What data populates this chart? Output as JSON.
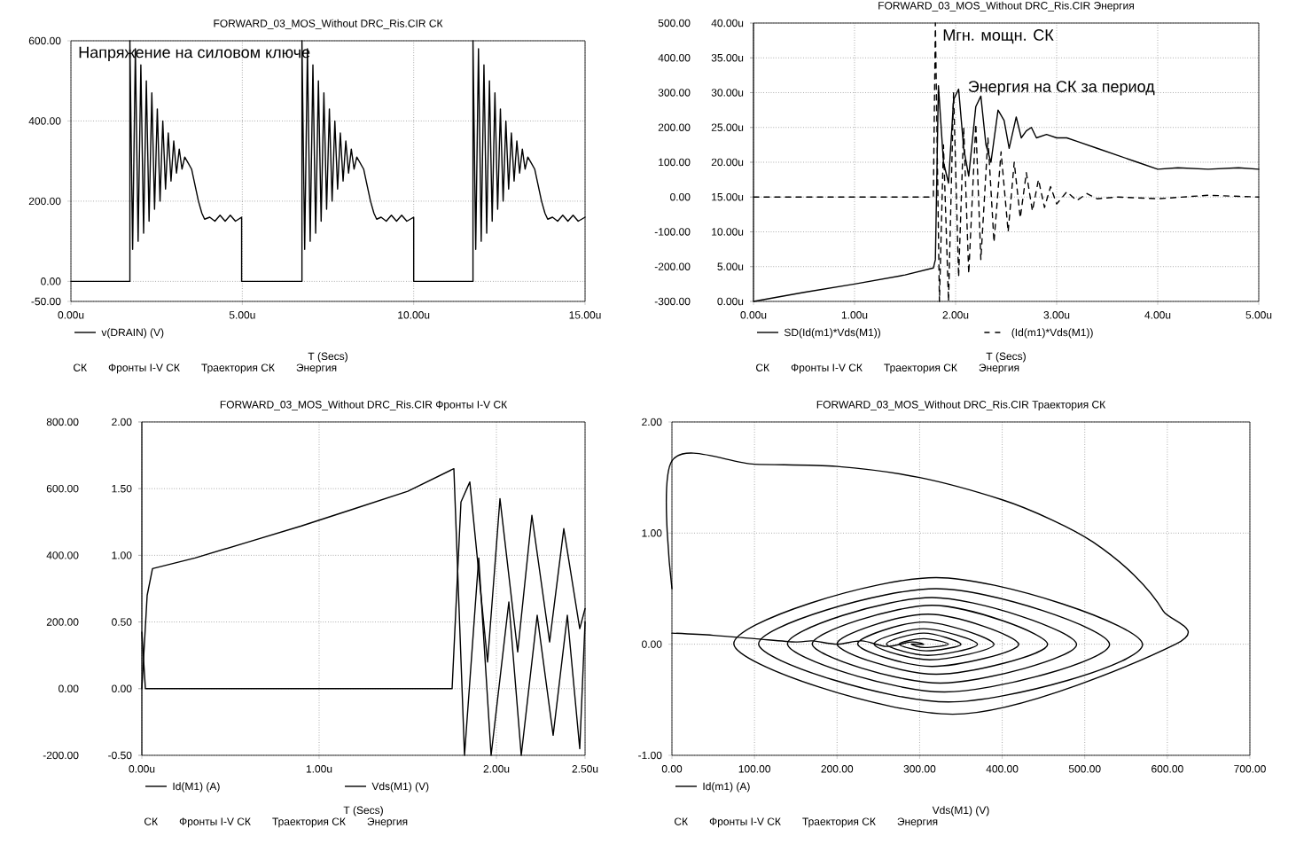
{
  "chart_data": [
    {
      "type": "line",
      "title": "FORWARD_03_MOS_Without DRC_Ris.CIR СК",
      "xlabel": "T (Secs)",
      "xlim": [
        0,
        15
      ],
      "ylim": [
        -50,
        600
      ],
      "legend": "bottom",
      "xticks": [
        {
          "value": 0,
          "label": "0.00u"
        },
        {
          "value": 5,
          "label": "5.00u"
        },
        {
          "value": 10,
          "label": "10.00u"
        },
        {
          "value": 15,
          "label": "15.00u"
        }
      ],
      "yticks": [
        {
          "value": -50,
          "label": "-50.00"
        },
        {
          "value": 0,
          "label": "0.00"
        },
        {
          "value": 200,
          "label": "200.00"
        },
        {
          "value": 400,
          "label": "400.00"
        },
        {
          "value": 600,
          "label": "600.00"
        }
      ],
      "grid": true,
      "annotations": [
        "Напряжение на силовом ключе",
        "СК",
        "Фронты I-V СК",
        "Траектория СК",
        "Энергия"
      ],
      "series": [
        {
          "name": "v(DRAIN) (V)",
          "color": "#000000",
          "x": [
            0,
            1.72,
            1.72,
            1.8,
            1.88,
            1.96,
            2.04,
            2.12,
            2.2,
            2.28,
            2.36,
            2.44,
            2.52,
            2.6,
            2.68,
            2.76,
            2.84,
            2.92,
            3.0,
            3.08,
            3.16,
            3.24,
            3.32,
            3.42,
            3.52,
            3.62,
            3.72,
            3.82,
            3.9,
            4.05,
            4.2,
            4.35,
            4.5,
            4.65,
            4.8,
            4.98,
            4.98,
            6.74,
            6.74,
            6.82,
            6.9,
            6.98,
            7.06,
            7.14,
            7.22,
            7.3,
            7.38,
            7.46,
            7.54,
            7.62,
            7.7,
            7.78,
            7.86,
            7.94,
            8.02,
            8.1,
            8.18,
            8.26,
            8.34,
            8.44,
            8.54,
            8.64,
            8.74,
            8.84,
            8.92,
            9.05,
            9.2,
            9.35,
            9.5,
            9.65,
            9.8,
            10.0,
            10.0,
            11.73,
            11.73,
            11.81,
            11.89,
            11.97,
            12.05,
            12.13,
            12.21,
            12.29,
            12.37,
            12.45,
            12.53,
            12.61,
            12.69,
            12.77,
            12.85,
            12.93,
            13.01,
            13.09,
            13.17,
            13.25,
            13.33,
            13.43,
            13.53,
            13.63,
            13.73,
            13.83,
            13.91,
            14.05,
            14.2,
            14.35,
            14.5,
            14.65,
            14.8,
            15.0
          ],
          "values": [
            0,
            0,
            600,
            80,
            580,
            100,
            540,
            120,
            500,
            150,
            470,
            180,
            430,
            200,
            400,
            230,
            370,
            250,
            350,
            270,
            330,
            280,
            310,
            295,
            280,
            240,
            200,
            170,
            155,
            160,
            150,
            165,
            150,
            165,
            150,
            160,
            0,
            0,
            600,
            80,
            580,
            100,
            540,
            120,
            500,
            150,
            470,
            180,
            430,
            200,
            400,
            230,
            370,
            250,
            350,
            270,
            330,
            280,
            310,
            295,
            280,
            240,
            200,
            170,
            155,
            160,
            150,
            165,
            150,
            165,
            150,
            160,
            0,
            0,
            600,
            80,
            580,
            100,
            540,
            120,
            500,
            150,
            470,
            180,
            430,
            200,
            400,
            230,
            370,
            250,
            350,
            270,
            330,
            280,
            310,
            295,
            280,
            240,
            200,
            170,
            155,
            160,
            150,
            165,
            150,
            165,
            150,
            160
          ]
        }
      ]
    },
    {
      "type": "line",
      "title": "FORWARD_03_MOS_Without DRC_Ris.CIR Энергия",
      "xlabel": "T (Secs)",
      "xlim": [
        0,
        5
      ],
      "ylim": [
        -300,
        500
      ],
      "y2lim": [
        0,
        40
      ],
      "legend": "bottom",
      "xticks": [
        {
          "value": 0,
          "label": "0.00u"
        },
        {
          "value": 1,
          "label": "1.00u"
        },
        {
          "value": 2,
          "label": "2.00u"
        },
        {
          "value": 3,
          "label": "3.00u"
        },
        {
          "value": 4,
          "label": "4.00u"
        },
        {
          "value": 5,
          "label": "5.00u"
        }
      ],
      "yticks": [
        {
          "value": -300,
          "label": "-300.00"
        },
        {
          "value": -200,
          "label": "-200.00"
        },
        {
          "value": -100,
          "label": "-100.00"
        },
        {
          "value": 0,
          "label": "0.00"
        },
        {
          "value": 100,
          "label": "100.00"
        },
        {
          "value": 200,
          "label": "200.00"
        },
        {
          "value": 300,
          "label": "300.00"
        },
        {
          "value": 400,
          "label": "400.00"
        },
        {
          "value": 500,
          "label": "500.00"
        }
      ],
      "y2ticks": [
        {
          "value": 0,
          "label": "0.00u"
        },
        {
          "value": 5,
          "label": "5.00u"
        },
        {
          "value": 10,
          "label": "10.00u"
        },
        {
          "value": 15,
          "label": "15.00u"
        },
        {
          "value": 20,
          "label": "20.00u"
        },
        {
          "value": 25,
          "label": "25.00u"
        },
        {
          "value": 30,
          "label": "30.00u"
        },
        {
          "value": 35,
          "label": "35.00u"
        },
        {
          "value": 40,
          "label": "40.00u"
        }
      ],
      "grid": true,
      "annotations": [
        "Мгн. мощн. СК",
        "Энергия на СК за период",
        "СК",
        "Фронты I-V СК",
        "Траектория СК",
        "Энергия"
      ],
      "series": [
        {
          "name": "SD(Id(m1)*Vds(M1))",
          "color": "#000000",
          "axis": "y2",
          "x": [
            0,
            0.5,
            1.0,
            1.5,
            1.78,
            1.8,
            1.83,
            1.88,
            1.93,
            1.98,
            2.03,
            2.08,
            2.13,
            2.2,
            2.25,
            2.3,
            2.35,
            2.42,
            2.48,
            2.53,
            2.6,
            2.65,
            2.7,
            2.75,
            2.8,
            2.9,
            3.0,
            3.1,
            3.2,
            3.4,
            3.6,
            3.8,
            4.0,
            4.2,
            4.5,
            4.8,
            5.0
          ],
          "values": [
            0,
            1.3,
            2.5,
            3.8,
            4.8,
            6,
            31,
            20,
            17,
            29,
            30.5,
            22,
            18,
            28,
            29.5,
            22.5,
            20,
            27.5,
            26,
            22,
            26.5,
            23.5,
            24.5,
            25,
            23.5,
            24,
            23.5,
            23.5,
            23,
            22,
            21,
            20,
            19,
            19.2,
            19,
            19.2,
            19
          ]
        },
        {
          "name": "(Id(m1)*Vds(M1))",
          "color": "#000000",
          "line_style": "dashed",
          "x": [
            0,
            1.78,
            1.8,
            1.84,
            1.88,
            1.93,
            1.98,
            2.03,
            2.08,
            2.13,
            2.2,
            2.25,
            2.32,
            2.38,
            2.45,
            2.52,
            2.58,
            2.64,
            2.7,
            2.76,
            2.82,
            2.88,
            2.94,
            3.0,
            3.1,
            3.2,
            3.3,
            3.4,
            3.6,
            4.0,
            4.5,
            5.0
          ],
          "values": [
            0,
            0,
            500,
            -300,
            150,
            -300,
            300,
            -230,
            200,
            -220,
            210,
            -180,
            170,
            -130,
            130,
            -100,
            100,
            -60,
            70,
            -40,
            50,
            -30,
            30,
            -20,
            15,
            -10,
            10,
            -5,
            0,
            -5,
            5,
            0
          ]
        }
      ]
    },
    {
      "type": "line",
      "title": "FORWARD_03_MOS_Without DRC_Ris.CIR Фронты I-V СК",
      "xlabel": "T (Secs)",
      "xlim": [
        0,
        2.5
      ],
      "ylim": [
        -200,
        800
      ],
      "y2lim": [
        -0.5,
        2
      ],
      "legend": "bottom",
      "xticks": [
        {
          "value": 0,
          "label": "0.00u"
        },
        {
          "value": 1,
          "label": "1.00u"
        },
        {
          "value": 2,
          "label": "2.00u"
        },
        {
          "value": 2.5,
          "label": "2.50u"
        }
      ],
      "yticks": [
        {
          "value": -200,
          "label": "-200.00"
        },
        {
          "value": 0,
          "label": "0.00"
        },
        {
          "value": 200,
          "label": "200.00"
        },
        {
          "value": 400,
          "label": "400.00"
        },
        {
          "value": 600,
          "label": "600.00"
        },
        {
          "value": 800,
          "label": "800.00"
        }
      ],
      "y2ticks": [
        {
          "value": -0.5,
          "label": "-0.50"
        },
        {
          "value": 0,
          "label": "0.00"
        },
        {
          "value": 0.5,
          "label": "0.50"
        },
        {
          "value": 1,
          "label": "1.00"
        },
        {
          "value": 1.5,
          "label": "1.50"
        },
        {
          "value": 2,
          "label": "2.00"
        }
      ],
      "grid": true,
      "annotations": [
        "СК",
        "Фронты I-V СК",
        "Траектория СК",
        "Энергия"
      ],
      "series": [
        {
          "name": "Id(M1) (A)",
          "color": "#000000",
          "axis": "y2",
          "x": [
            0,
            0.03,
            0.06,
            0.3,
            0.6,
            0.9,
            1.2,
            1.5,
            1.76,
            1.82,
            1.9,
            1.97,
            2.07,
            2.14,
            2.23,
            2.32,
            2.4,
            2.47,
            2.5
          ],
          "values": [
            0,
            0.7,
            0.9,
            0.98,
            1.1,
            1.22,
            1.35,
            1.48,
            1.65,
            -0.5,
            0.98,
            -0.5,
            0.65,
            -0.5,
            0.55,
            -0.35,
            0.55,
            -0.45,
            0.5
          ]
        },
        {
          "name": "Vds(M1) (V)",
          "color": "#000000",
          "x": [
            0,
            0.02,
            1.75,
            1.8,
            1.85,
            1.95,
            2.02,
            2.12,
            2.2,
            2.3,
            2.38,
            2.47,
            2.5
          ],
          "values": [
            170,
            0,
            0,
            560,
            620,
            80,
            570,
            110,
            520,
            140,
            480,
            180,
            240
          ]
        }
      ]
    },
    {
      "type": "line",
      "title": "FORWARD_03_MOS_Without DRC_Ris.CIR Траектория СК",
      "xlabel": "Vds(M1) (V)",
      "xlim": [
        0,
        700
      ],
      "ylim": [
        -1,
        2
      ],
      "legend": "bottom",
      "xticks": [
        {
          "value": 0,
          "label": "0.00"
        },
        {
          "value": 100,
          "label": "100.00"
        },
        {
          "value": 200,
          "label": "200.00"
        },
        {
          "value": 300,
          "label": "300.00"
        },
        {
          "value": 400,
          "label": "400.00"
        },
        {
          "value": 500,
          "label": "500.00"
        },
        {
          "value": 600,
          "label": "600.00"
        },
        {
          "value": 700,
          "label": "700.00"
        }
      ],
      "yticks": [
        {
          "value": -1,
          "label": "-1.00"
        },
        {
          "value": 0,
          "label": "0.00"
        },
        {
          "value": 1,
          "label": "1.00"
        },
        {
          "value": 2,
          "label": "2.00"
        }
      ],
      "grid": true,
      "annotations": [
        "СК",
        "Фронты I-V СК",
        "Траектория СК",
        "Энергия"
      ],
      "series": [
        {
          "name": "Id(m1) (A)",
          "color": "#000000",
          "x": [
            0,
            0,
            100,
            200,
            300,
            400,
            460,
            510,
            560,
            595,
            610,
            340,
            75,
            320,
            570,
            335,
            105,
            320,
            530,
            330,
            140,
            315,
            490,
            325,
            170,
            315,
            455,
            320,
            200,
            310,
            420,
            315,
            225,
            305,
            390,
            312,
            245,
            305,
            370,
            310,
            260,
            305,
            350,
            308,
            275,
            305,
            335,
            306,
            290,
            305,
            290,
            260,
            230,
            200,
            170,
            150,
            100,
            50,
            0
          ],
          "values": [
            0.5,
            1.65,
            1.62,
            1.6,
            1.5,
            1.3,
            1.12,
            0.92,
            0.62,
            0.3,
            0,
            -0.63,
            0,
            0.6,
            0,
            -0.52,
            0,
            0.5,
            0,
            -0.43,
            0,
            0.42,
            0,
            -0.35,
            0,
            0.35,
            0,
            -0.27,
            0,
            0.27,
            0,
            -0.2,
            0,
            0.2,
            0,
            -0.14,
            0,
            0.14,
            0,
            -0.1,
            0,
            0.1,
            0,
            -0.06,
            0,
            0.05,
            0,
            -0.03,
            0,
            0,
            0.02,
            -0.02,
            0.03,
            0,
            0.03,
            0.02,
            0.05,
            0.08,
            0.1
          ]
        }
      ]
    }
  ]
}
